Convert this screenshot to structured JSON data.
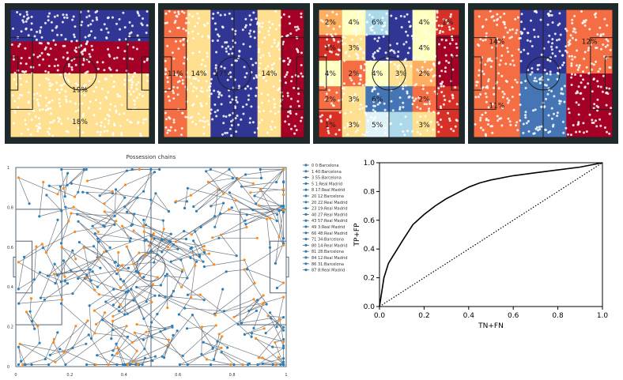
{
  "colors": {
    "pitch_frame": "#1f2a2c",
    "dark_blue": "#313695",
    "mid_blue": "#4575b4",
    "light_blue": "#abd9e9",
    "pale_blue": "#e0f3f8",
    "cream": "#ffffbf",
    "pale_yellow": "#fee090",
    "orange_light": "#fdae61",
    "orange": "#f46d43",
    "red": "#d73027",
    "dark_red": "#a50026",
    "chain_line": "#5a6470",
    "barcelona_marker": "#2c7fb8",
    "real_madrid_marker": "#ff8c1a",
    "roc_line": "#000000"
  },
  "heatmaps": [
    {
      "layout": "rows",
      "bands": [
        {
          "label": "",
          "color": "#313695"
        },
        {
          "label": "",
          "color": "#a50026"
        },
        {
          "label": "19%",
          "color": "#fee090"
        },
        {
          "label": "18%",
          "color": "#fee090"
        }
      ]
    },
    {
      "layout": "cols",
      "bands": [
        {
          "label": "11%",
          "color": "#f46d43"
        },
        {
          "label": "14%",
          "color": "#fee090"
        },
        {
          "label": "27%",
          "color": "#313695"
        },
        {
          "label": "",
          "color": "#313695"
        },
        {
          "label": "14%",
          "color": "#fee090"
        },
        {
          "label": "",
          "color": "#a50026"
        }
      ]
    },
    {
      "layout": "grid",
      "rows": 5,
      "cols": 6,
      "cells": [
        {
          "label": "2%",
          "color": "#fdae61"
        },
        {
          "label": "4%",
          "color": "#ffffbf"
        },
        {
          "label": "6%",
          "color": "#abd9e9"
        },
        {
          "label": "",
          "color": "#313695"
        },
        {
          "label": "4%",
          "color": "#ffffbf"
        },
        {
          "label": "1%",
          "color": "#d73027"
        },
        {
          "label": "1%",
          "color": "#d73027"
        },
        {
          "label": "3%",
          "color": "#fee090"
        },
        {
          "label": "",
          "color": "#313695"
        },
        {
          "label": "",
          "color": "#313695"
        },
        {
          "label": "4%",
          "color": "#ffffbf"
        },
        {
          "label": "",
          "color": "#a50026"
        },
        {
          "label": "4%",
          "color": "#ffffbf"
        },
        {
          "label": "2%",
          "color": "#f46d43"
        },
        {
          "label": "4%",
          "color": "#ffffbf"
        },
        {
          "label": "3%",
          "color": "#fee090"
        },
        {
          "label": "2%",
          "color": "#fdae61"
        },
        {
          "label": "",
          "color": "#a50026"
        },
        {
          "label": "2%",
          "color": "#f46d43"
        },
        {
          "label": "3%",
          "color": "#fee090"
        },
        {
          "label": "6%",
          "color": "#4575b4"
        },
        {
          "label": "",
          "color": "#4575b4"
        },
        {
          "label": "2%",
          "color": "#f46d43"
        },
        {
          "label": "",
          "color": "#d73027"
        },
        {
          "label": "1%",
          "color": "#d73027"
        },
        {
          "label": "3%",
          "color": "#fee090"
        },
        {
          "label": "5%",
          "color": "#e0f3f8"
        },
        {
          "label": "",
          "color": "#abd9e9"
        },
        {
          "label": "3%",
          "color": "#fee090"
        },
        {
          "label": "",
          "color": "#d73027"
        }
      ]
    },
    {
      "layout": "grid",
      "rows": 2,
      "cols": 3,
      "cells": [
        {
          "label": "14%",
          "color": "#f46d43"
        },
        {
          "label": "",
          "color": "#313695"
        },
        {
          "label": "12%",
          "color": "#f46d43"
        },
        {
          "label": "11%",
          "color": "#f46d43"
        },
        {
          "label": "",
          "color": "#4575b4"
        },
        {
          "label": "",
          "color": "#a50026"
        }
      ]
    }
  ],
  "chart_data": [
    {
      "type": "scatter",
      "title": "Possession chains",
      "xlim": [
        0,
        1
      ],
      "ylim": [
        0,
        1
      ],
      "x_ticks": [
        "0",
        "0.2",
        "0.4",
        "0.6",
        "0.8",
        "1"
      ],
      "y_ticks": [
        "0",
        "0.2",
        "0.4",
        "0.6",
        "0.8",
        "1"
      ],
      "legend_position": "right",
      "series": [
        {
          "name": "0 0:Barcelona"
        },
        {
          "name": "1 40:Barcelona"
        },
        {
          "name": "3 55:Barcelona"
        },
        {
          "name": "5 1:Real Madrid"
        },
        {
          "name": "8 17:Real Madrid"
        },
        {
          "name": "20 12:Barcelona"
        },
        {
          "name": "20 22:Real Madrid"
        },
        {
          "name": "23 19:Real Madrid"
        },
        {
          "name": "40 27:Real Madrid"
        },
        {
          "name": "43 57:Real Madrid"
        },
        {
          "name": "49 3:Real Madrid"
        },
        {
          "name": "66 48:Real Madrid"
        },
        {
          "name": "71 34:Barcelona"
        },
        {
          "name": "80 14:Real Madrid"
        },
        {
          "name": "81 28:Barcelona"
        },
        {
          "name": "84 12:Real Madrid"
        },
        {
          "name": "86 31:Barcelona"
        },
        {
          "name": "87 8:Real Madrid"
        }
      ]
    },
    {
      "type": "line",
      "title": "",
      "xlabel": "TN+FN",
      "ylabel": "TP+FP",
      "xlim": [
        0,
        1
      ],
      "ylim": [
        0,
        1
      ],
      "x_ticks": [
        "0.0",
        "0.2",
        "0.4",
        "0.6",
        "0.8",
        "1.0"
      ],
      "y_ticks": [
        "0.0",
        "0.2",
        "0.4",
        "0.6",
        "0.8",
        "1.0"
      ],
      "series": [
        {
          "style": "solid",
          "x": [
            0,
            0.005,
            0.01,
            0.02,
            0.04,
            0.06,
            0.08,
            0.1,
            0.15,
            0.2,
            0.25,
            0.3,
            0.35,
            0.4,
            0.45,
            0.5,
            0.6,
            0.7,
            0.8,
            0.9,
            1.0
          ],
          "y": [
            0,
            0.05,
            0.1,
            0.2,
            0.3,
            0.35,
            0.4,
            0.45,
            0.57,
            0.64,
            0.7,
            0.75,
            0.79,
            0.83,
            0.86,
            0.88,
            0.91,
            0.93,
            0.95,
            0.97,
            1.0
          ]
        },
        {
          "style": "dotted",
          "x": [
            0,
            1
          ],
          "y": [
            0,
            1
          ]
        }
      ]
    }
  ]
}
